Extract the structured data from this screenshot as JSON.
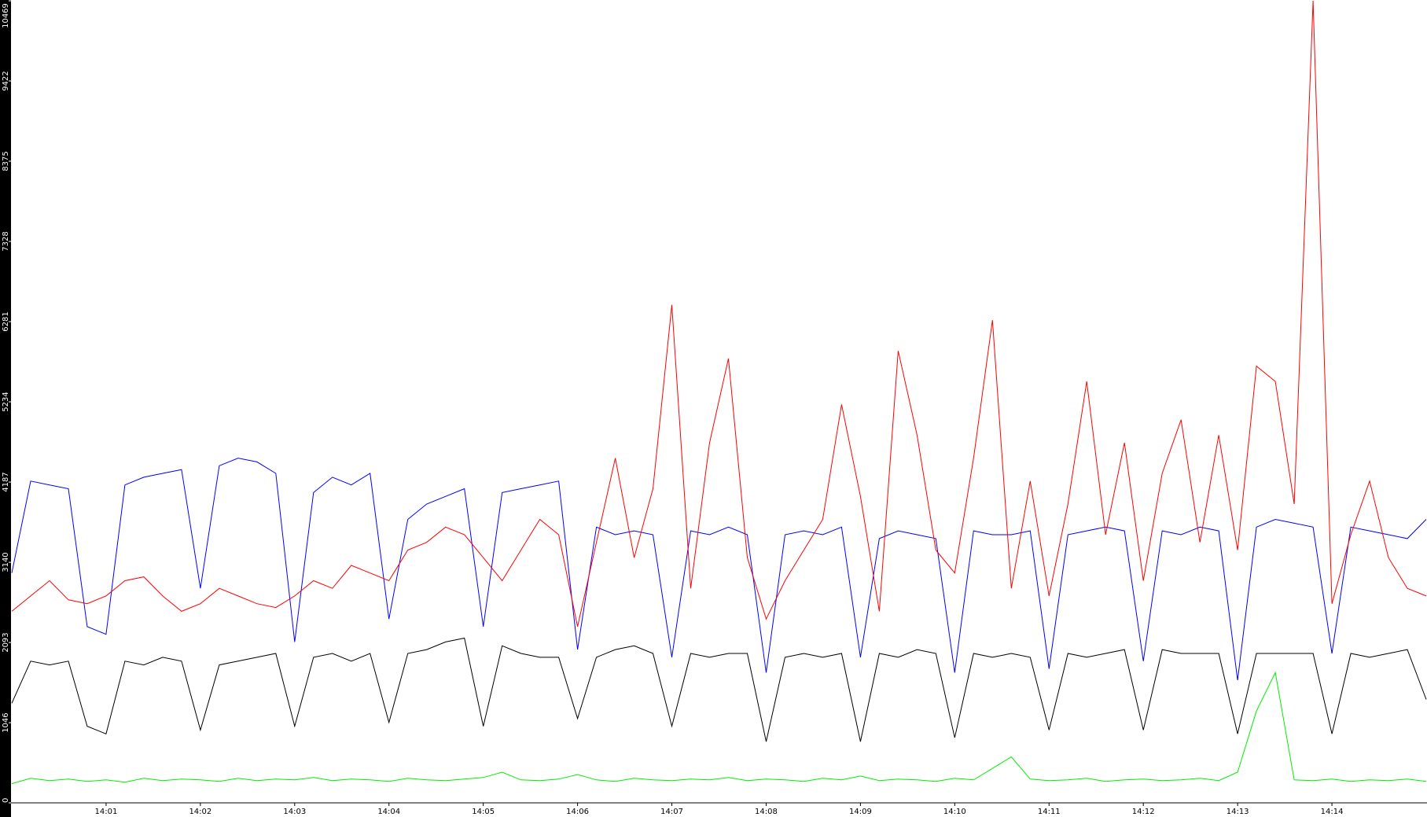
{
  "chart_data": {
    "type": "line",
    "x": [
      0,
      0.2,
      0.4,
      0.6,
      0.8,
      1,
      1.2,
      1.4,
      1.6,
      1.8,
      2,
      2.2,
      2.4,
      2.6,
      2.8,
      3,
      3.2,
      3.4,
      3.6,
      3.8,
      4,
      4.2,
      4.4,
      4.6,
      4.8,
      5,
      5.2,
      5.4,
      5.6,
      5.8,
      6,
      6.2,
      6.4,
      6.6,
      6.8,
      7,
      7.2,
      7.4,
      7.6,
      7.8,
      8,
      8.2,
      8.4,
      8.6,
      8.8,
      9,
      9.2,
      9.4,
      9.6,
      9.8,
      10,
      10.2,
      10.4,
      10.6,
      10.8,
      11,
      11.2,
      11.4,
      11.6,
      11.8,
      12,
      12.2,
      12.4,
      12.6,
      12.8,
      13,
      13.2,
      13.4,
      13.6,
      13.8,
      14,
      14.2,
      14.4,
      14.6,
      14.8,
      15
    ],
    "series": [
      {
        "color": "#0000ff",
        "values": [
          3000,
          4200,
          4150,
          4100,
          2300,
          2200,
          4150,
          4250,
          4300,
          4350,
          2800,
          4400,
          4500,
          4450,
          4300,
          2100,
          4050,
          4250,
          4150,
          4300,
          2400,
          3700,
          3900,
          4000,
          4100,
          2300,
          4050,
          4100,
          4150,
          4200,
          2000,
          3600,
          3500,
          3550,
          3500,
          1900,
          3550,
          3500,
          3600,
          3500,
          1700,
          3500,
          3550,
          3500,
          3600,
          1900,
          3450,
          3550,
          3500,
          3450,
          1700,
          3550,
          3500,
          3500,
          3550,
          1750,
          3500,
          3550,
          3600,
          3550,
          1850,
          3550,
          3500,
          3600,
          3550,
          1600,
          3600,
          3700,
          3650,
          3600,
          1950,
          3600,
          3550,
          3500,
          3450,
          3700
        ]
      },
      {
        "color": "#ff0000",
        "values": [
          2500,
          2700,
          2900,
          2650,
          2600,
          2700,
          2900,
          2950,
          2700,
          2500,
          2600,
          2800,
          2700,
          2600,
          2550,
          2700,
          2900,
          2800,
          3100,
          3000,
          2900,
          3300,
          3400,
          3600,
          3500,
          3200,
          2900,
          3300,
          3700,
          3500,
          2300,
          3400,
          4500,
          3200,
          4100,
          6500,
          2800,
          4700,
          5800,
          3200,
          2400,
          2900,
          3300,
          3700,
          5200,
          4000,
          2500,
          5900,
          4800,
          3300,
          3000,
          4500,
          6300,
          2800,
          4200,
          2700,
          3900,
          5500,
          3500,
          4700,
          2900,
          4300,
          5000,
          3400,
          4800,
          3300,
          5700,
          5500,
          3900,
          10469,
          2600,
          3500,
          4200,
          3200,
          2800,
          2700
        ]
      },
      {
        "color": "#000000",
        "values": [
          1300,
          1850,
          1800,
          1850,
          1000,
          900,
          1850,
          1800,
          1900,
          1850,
          950,
          1800,
          1850,
          1900,
          1950,
          1000,
          1900,
          1950,
          1850,
          1950,
          1050,
          1950,
          2000,
          2100,
          2150,
          1000,
          2050,
          1950,
          1900,
          1900,
          1100,
          1900,
          2000,
          2050,
          1950,
          1000,
          1950,
          1900,
          1950,
          1950,
          800,
          1900,
          1950,
          1900,
          1950,
          800,
          1950,
          1900,
          2000,
          1950,
          850,
          1950,
          1900,
          1950,
          1900,
          950,
          1950,
          1900,
          1950,
          2000,
          950,
          2000,
          1950,
          1950,
          1950,
          900,
          1950,
          1950,
          1950,
          1950,
          900,
          1950,
          1900,
          1950,
          2000,
          1350
        ]
      },
      {
        "color": "#00ee00",
        "values": [
          250,
          320,
          290,
          310,
          280,
          300,
          270,
          320,
          290,
          310,
          300,
          280,
          320,
          290,
          310,
          300,
          330,
          290,
          310,
          300,
          280,
          320,
          300,
          290,
          310,
          330,
          400,
          300,
          290,
          310,
          370,
          300,
          280,
          320,
          300,
          290,
          310,
          300,
          330,
          290,
          310,
          300,
          280,
          320,
          300,
          350,
          290,
          310,
          300,
          280,
          320,
          300,
          450,
          600,
          310,
          290,
          300,
          320,
          280,
          300,
          310,
          290,
          300,
          320,
          290,
          400,
          1200,
          1700,
          300,
          290,
          310,
          280,
          300,
          290,
          310,
          280
        ]
      }
    ],
    "xlim": [
      0,
      15
    ],
    "xticks": [
      {
        "value": 1,
        "label": "14:01"
      },
      {
        "value": 2,
        "label": "14:02"
      },
      {
        "value": 3,
        "label": "14:03"
      },
      {
        "value": 4,
        "label": "14:04"
      },
      {
        "value": 5,
        "label": "14:05"
      },
      {
        "value": 6,
        "label": "14:06"
      },
      {
        "value": 7,
        "label": "14:07"
      },
      {
        "value": 8,
        "label": "14:08"
      },
      {
        "value": 9,
        "label": "14:09"
      },
      {
        "value": 10,
        "label": "14:10"
      },
      {
        "value": 11,
        "label": "14:11"
      },
      {
        "value": 12,
        "label": "14:12"
      },
      {
        "value": 13,
        "label": "14:13"
      },
      {
        "value": 14,
        "label": "14:14"
      }
    ],
    "ylim": [
      0,
      10469
    ],
    "yticks": [
      0,
      1046,
      2093,
      3140,
      4187,
      5234,
      6281,
      7328,
      8375,
      9422,
      10469
    ]
  }
}
